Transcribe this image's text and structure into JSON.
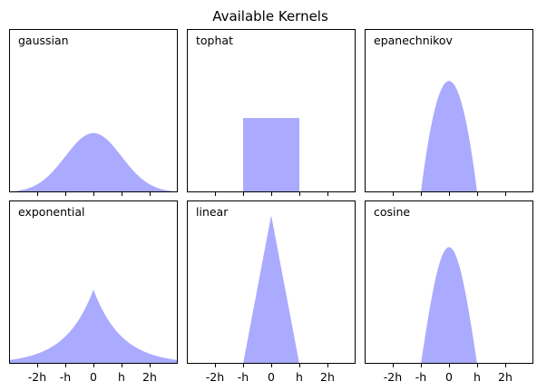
{
  "chart_data": {
    "type": "area",
    "title": "Available Kernels",
    "sharex": true,
    "xlim": [
      -3,
      3
    ],
    "ylim": [
      0,
      1.1
    ],
    "grid": false,
    "fill_color": "#aaaaff",
    "x_ticks": [
      -2,
      -1,
      0,
      1,
      2
    ],
    "x_tick_labels": [
      "-2h",
      "-h",
      "0",
      "h",
      "2h"
    ],
    "kernels": [
      {
        "name": "gaussian",
        "peak": 0.399,
        "support": null
      },
      {
        "name": "tophat",
        "peak": 0.5,
        "support": [
          -1,
          1
        ]
      },
      {
        "name": "epanechnikov",
        "peak": 0.75,
        "support": [
          -1,
          1
        ]
      },
      {
        "name": "exponential",
        "peak": 0.5,
        "support": null
      },
      {
        "name": "linear",
        "peak": 1.0,
        "support": [
          -1,
          1
        ]
      },
      {
        "name": "cosine",
        "peak": 0.785,
        "support": [
          -1,
          1
        ]
      }
    ]
  }
}
